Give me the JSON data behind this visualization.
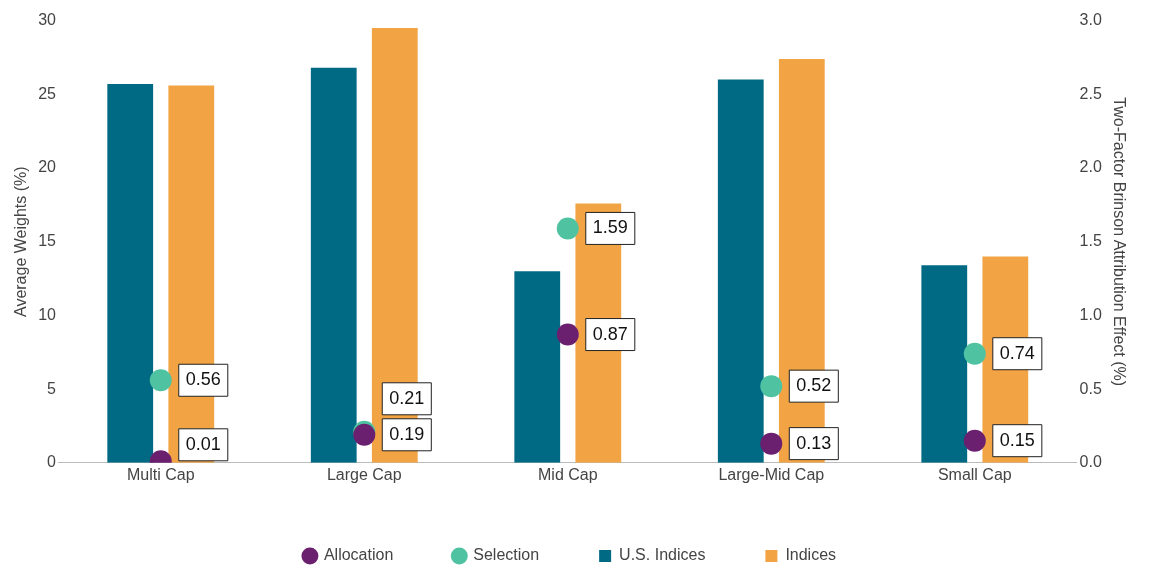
{
  "chart_data": {
    "type": "bar",
    "ylabel": "Average Weights (%)",
    "y2label": "Two-Factor Brinson Attribution Effect (%)",
    "categories": [
      "Multi Cap",
      "Large Cap",
      "Mid Cap",
      "Large-Mid Cap",
      "Small Cap"
    ],
    "series": [
      {
        "name": "U.S. Indices",
        "color": "#006a84",
        "values": [
          25.7,
          26.8,
          13.0,
          26.0,
          13.4
        ]
      },
      {
        "name": "Indices",
        "color": "#f2a444",
        "values": [
          25.6,
          29.5,
          17.6,
          27.4,
          14.0
        ]
      },
      {
        "name": "Allocation",
        "type": "scatter",
        "axis": "y2",
        "color": "#6b1f6f",
        "values": [
          0.01,
          0.19,
          0.87,
          0.13,
          0.15
        ],
        "value_labels": [
          "0.01",
          "0.19",
          "0.87",
          "0.13",
          "0.15"
        ]
      },
      {
        "name": "Selection",
        "type": "scatter",
        "axis": "y2",
        "color": "#4fc3a1",
        "values": [
          0.56,
          0.21,
          1.59,
          0.52,
          0.74
        ],
        "value_labels": [
          "0.56",
          "0.21",
          "1.59",
          "0.52",
          "0.74"
        ]
      }
    ],
    "ylim": [
      0,
      30
    ],
    "yticks": [
      0,
      5,
      10,
      15,
      20,
      25,
      30
    ],
    "y2lim": [
      0,
      3
    ],
    "y2ticks": [
      {
        "value": 0,
        "label": "0.0"
      },
      {
        "value": 0.5,
        "label": "0.5"
      },
      {
        "value": 1,
        "label": "1.0"
      },
      {
        "value": 1.5,
        "label": "1.5"
      },
      {
        "value": 2,
        "label": "2.0"
      },
      {
        "value": 2.5,
        "label": "2.5"
      },
      {
        "value": 3,
        "label": "3.0"
      }
    ],
    "grid": false,
    "legend": "bottom",
    "marker": "circle"
  }
}
